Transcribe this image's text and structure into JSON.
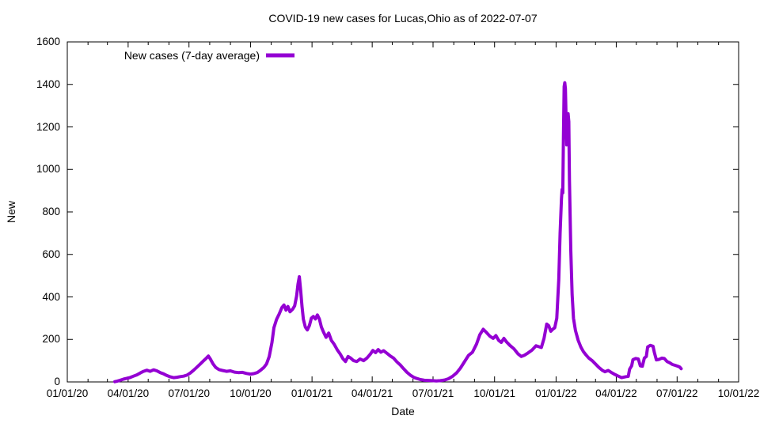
{
  "chart_data": {
    "type": "line",
    "title": "COVID-19 new cases for Lucas,Ohio as of 2022-07-07",
    "xlabel": "Date",
    "ylabel": "New",
    "ylim": [
      0,
      1600
    ],
    "y_ticks": [
      0,
      200,
      400,
      600,
      800,
      1000,
      1200,
      1400,
      1600
    ],
    "x_range": [
      "2020-01-01",
      "2022-10-01"
    ],
    "x_major_ticks": [
      {
        "date": "2020-01-01",
        "label": "01/01/20"
      },
      {
        "date": "2020-04-01",
        "label": "04/01/20"
      },
      {
        "date": "2020-07-01",
        "label": "07/01/20"
      },
      {
        "date": "2020-10-01",
        "label": "10/01/20"
      },
      {
        "date": "2021-01-01",
        "label": "01/01/21"
      },
      {
        "date": "2021-04-01",
        "label": "04/01/21"
      },
      {
        "date": "2021-07-01",
        "label": "07/01/21"
      },
      {
        "date": "2021-10-01",
        "label": "10/01/21"
      },
      {
        "date": "2022-01-01",
        "label": "01/01/22"
      },
      {
        "date": "2022-04-01",
        "label": "04/01/22"
      },
      {
        "date": "2022-07-01",
        "label": "07/01/22"
      },
      {
        "date": "2022-10-01",
        "label": "10/01/22"
      }
    ],
    "x_minor_tick_interval": "month",
    "grid": false,
    "legend": {
      "label": "New cases (7-day average)",
      "position": "top-left"
    },
    "line_color": "#9400d3",
    "border_color": "#000000",
    "background_color": "#ffffff",
    "series": [
      {
        "name": "New cases (7-day average)",
        "points": [
          [
            "2020-03-12",
            1
          ],
          [
            "2020-03-16",
            4
          ],
          [
            "2020-03-20",
            8
          ],
          [
            "2020-03-25",
            13
          ],
          [
            "2020-03-30",
            17
          ],
          [
            "2020-04-04",
            21
          ],
          [
            "2020-04-09",
            27
          ],
          [
            "2020-04-14",
            33
          ],
          [
            "2020-04-19",
            42
          ],
          [
            "2020-04-24",
            50
          ],
          [
            "2020-04-29",
            55
          ],
          [
            "2020-05-04",
            50
          ],
          [
            "2020-05-09",
            57
          ],
          [
            "2020-05-14",
            52
          ],
          [
            "2020-05-19",
            44
          ],
          [
            "2020-05-24",
            38
          ],
          [
            "2020-05-29",
            30
          ],
          [
            "2020-06-03",
            24
          ],
          [
            "2020-06-08",
            20
          ],
          [
            "2020-06-13",
            22
          ],
          [
            "2020-06-18",
            25
          ],
          [
            "2020-06-23",
            27
          ],
          [
            "2020-06-28",
            32
          ],
          [
            "2020-07-03",
            42
          ],
          [
            "2020-07-08",
            55
          ],
          [
            "2020-07-13",
            70
          ],
          [
            "2020-07-18",
            85
          ],
          [
            "2020-07-23",
            100
          ],
          [
            "2020-07-27",
            112
          ],
          [
            "2020-07-30",
            122
          ],
          [
            "2020-08-02",
            108
          ],
          [
            "2020-08-06",
            85
          ],
          [
            "2020-08-10",
            68
          ],
          [
            "2020-08-15",
            58
          ],
          [
            "2020-08-20",
            54
          ],
          [
            "2020-08-26",
            50
          ],
          [
            "2020-09-01",
            52
          ],
          [
            "2020-09-07",
            46
          ],
          [
            "2020-09-13",
            44
          ],
          [
            "2020-09-19",
            45
          ],
          [
            "2020-09-25",
            40
          ],
          [
            "2020-10-01",
            37
          ],
          [
            "2020-10-06",
            39
          ],
          [
            "2020-10-11",
            44
          ],
          [
            "2020-10-16",
            55
          ],
          [
            "2020-10-21",
            68
          ],
          [
            "2020-10-25",
            85
          ],
          [
            "2020-10-29",
            120
          ],
          [
            "2020-11-02",
            185
          ],
          [
            "2020-11-05",
            255
          ],
          [
            "2020-11-09",
            295
          ],
          [
            "2020-11-13",
            320
          ],
          [
            "2020-11-17",
            350
          ],
          [
            "2020-11-20",
            362
          ],
          [
            "2020-11-23",
            338
          ],
          [
            "2020-11-26",
            355
          ],
          [
            "2020-11-29",
            330
          ],
          [
            "2020-12-03",
            342
          ],
          [
            "2020-12-06",
            358
          ],
          [
            "2020-12-09",
            405
          ],
          [
            "2020-12-11",
            460
          ],
          [
            "2020-12-13",
            495
          ],
          [
            "2020-12-15",
            430
          ],
          [
            "2020-12-17",
            355
          ],
          [
            "2020-12-19",
            295
          ],
          [
            "2020-12-22",
            258
          ],
          [
            "2020-12-25",
            245
          ],
          [
            "2020-12-28",
            265
          ],
          [
            "2020-12-31",
            300
          ],
          [
            "2021-01-03",
            308
          ],
          [
            "2021-01-06",
            296
          ],
          [
            "2021-01-09",
            315
          ],
          [
            "2021-01-12",
            296
          ],
          [
            "2021-01-15",
            258
          ],
          [
            "2021-01-18",
            236
          ],
          [
            "2021-01-22",
            210
          ],
          [
            "2021-01-26",
            230
          ],
          [
            "2021-01-30",
            195
          ],
          [
            "2021-02-03",
            178
          ],
          [
            "2021-02-08",
            150
          ],
          [
            "2021-02-12",
            132
          ],
          [
            "2021-02-16",
            110
          ],
          [
            "2021-02-20",
            96
          ],
          [
            "2021-02-24",
            120
          ],
          [
            "2021-02-28",
            112
          ],
          [
            "2021-03-04",
            100
          ],
          [
            "2021-03-09",
            96
          ],
          [
            "2021-03-14",
            108
          ],
          [
            "2021-03-19",
            100
          ],
          [
            "2021-03-24",
            112
          ],
          [
            "2021-03-29",
            130
          ],
          [
            "2021-04-02",
            148
          ],
          [
            "2021-04-06",
            138
          ],
          [
            "2021-04-10",
            152
          ],
          [
            "2021-04-14",
            140
          ],
          [
            "2021-04-18",
            147
          ],
          [
            "2021-04-23",
            135
          ],
          [
            "2021-04-28",
            122
          ],
          [
            "2021-05-03",
            112
          ],
          [
            "2021-05-08",
            94
          ],
          [
            "2021-05-13",
            80
          ],
          [
            "2021-05-18",
            62
          ],
          [
            "2021-05-23",
            45
          ],
          [
            "2021-05-28",
            32
          ],
          [
            "2021-06-02",
            22
          ],
          [
            "2021-06-07",
            16
          ],
          [
            "2021-06-12",
            11
          ],
          [
            "2021-06-18",
            8
          ],
          [
            "2021-06-24",
            7
          ],
          [
            "2021-06-30",
            6
          ],
          [
            "2021-07-06",
            5
          ],
          [
            "2021-07-12",
            6
          ],
          [
            "2021-07-18",
            9
          ],
          [
            "2021-07-24",
            15
          ],
          [
            "2021-07-30",
            26
          ],
          [
            "2021-08-05",
            42
          ],
          [
            "2021-08-11",
            65
          ],
          [
            "2021-08-17",
            95
          ],
          [
            "2021-08-23",
            125
          ],
          [
            "2021-08-29",
            140
          ],
          [
            "2021-09-04",
            178
          ],
          [
            "2021-09-09",
            222
          ],
          [
            "2021-09-14",
            248
          ],
          [
            "2021-09-19",
            232
          ],
          [
            "2021-09-24",
            215
          ],
          [
            "2021-09-29",
            205
          ],
          [
            "2021-10-03",
            218
          ],
          [
            "2021-10-07",
            196
          ],
          [
            "2021-10-11",
            186
          ],
          [
            "2021-10-15",
            205
          ],
          [
            "2021-10-19",
            188
          ],
          [
            "2021-10-24",
            172
          ],
          [
            "2021-10-30",
            156
          ],
          [
            "2021-11-05",
            132
          ],
          [
            "2021-11-10",
            120
          ],
          [
            "2021-11-15",
            126
          ],
          [
            "2021-11-20",
            136
          ],
          [
            "2021-11-26",
            150
          ],
          [
            "2021-12-02",
            170
          ],
          [
            "2021-12-06",
            166
          ],
          [
            "2021-12-10",
            162
          ],
          [
            "2021-12-14",
            205
          ],
          [
            "2021-12-18",
            272
          ],
          [
            "2021-12-21",
            265
          ],
          [
            "2021-12-24",
            238
          ],
          [
            "2021-12-27",
            248
          ],
          [
            "2021-12-30",
            255
          ],
          [
            "2022-01-02",
            300
          ],
          [
            "2022-01-05",
            480
          ],
          [
            "2022-01-07",
            700
          ],
          [
            "2022-01-09",
            860
          ],
          [
            "2022-01-10",
            905
          ],
          [
            "2022-01-11",
            890
          ],
          [
            "2022-01-12",
            1150
          ],
          [
            "2022-01-13",
            1390
          ],
          [
            "2022-01-14",
            1408
          ],
          [
            "2022-01-15",
            1380
          ],
          [
            "2022-01-16",
            1230
          ],
          [
            "2022-01-17",
            1115
          ],
          [
            "2022-01-18",
            1180
          ],
          [
            "2022-01-19",
            1262
          ],
          [
            "2022-01-20",
            1225
          ],
          [
            "2022-01-21",
            950
          ],
          [
            "2022-01-23",
            620
          ],
          [
            "2022-01-25",
            410
          ],
          [
            "2022-01-27",
            300
          ],
          [
            "2022-01-30",
            242
          ],
          [
            "2022-02-03",
            196
          ],
          [
            "2022-02-07",
            164
          ],
          [
            "2022-02-11",
            142
          ],
          [
            "2022-02-15",
            126
          ],
          [
            "2022-02-19",
            112
          ],
          [
            "2022-02-24",
            100
          ],
          [
            "2022-03-01",
            84
          ],
          [
            "2022-03-06",
            68
          ],
          [
            "2022-03-11",
            55
          ],
          [
            "2022-03-15",
            48
          ],
          [
            "2022-03-20",
            54
          ],
          [
            "2022-03-25",
            44
          ],
          [
            "2022-03-30",
            35
          ],
          [
            "2022-04-04",
            27
          ],
          [
            "2022-04-09",
            20
          ],
          [
            "2022-04-13",
            23
          ],
          [
            "2022-04-16",
            25
          ],
          [
            "2022-04-19",
            26
          ],
          [
            "2022-04-21",
            60
          ],
          [
            "2022-04-24",
            76
          ],
          [
            "2022-04-26",
            105
          ],
          [
            "2022-04-30",
            110
          ],
          [
            "2022-05-04",
            108
          ],
          [
            "2022-05-07",
            76
          ],
          [
            "2022-05-10",
            74
          ],
          [
            "2022-05-13",
            112
          ],
          [
            "2022-05-16",
            120
          ],
          [
            "2022-05-18",
            165
          ],
          [
            "2022-05-22",
            172
          ],
          [
            "2022-05-26",
            168
          ],
          [
            "2022-05-28",
            138
          ],
          [
            "2022-05-31",
            104
          ],
          [
            "2022-06-04",
            106
          ],
          [
            "2022-06-08",
            112
          ],
          [
            "2022-06-12",
            110
          ],
          [
            "2022-06-16",
            96
          ],
          [
            "2022-06-20",
            90
          ],
          [
            "2022-06-24",
            82
          ],
          [
            "2022-06-28",
            78
          ],
          [
            "2022-07-02",
            74
          ],
          [
            "2022-07-05",
            70
          ],
          [
            "2022-07-07",
            62
          ]
        ]
      }
    ]
  }
}
